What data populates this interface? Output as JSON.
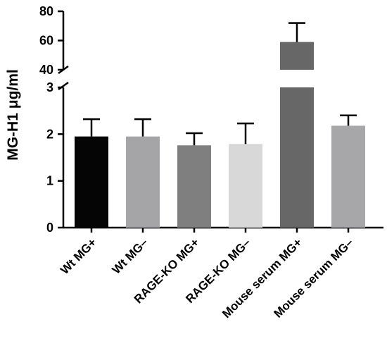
{
  "chart_data": {
    "type": "bar",
    "ylabel": "MG-H1 μg/ml",
    "categories": [
      "Wt MG+",
      "Wt MG–",
      "RAGE-KO MG+",
      "RAGE-KO MG–",
      "Mouse serum MG+",
      "Mouse serum MG–"
    ],
    "values": [
      1.95,
      1.95,
      1.76,
      1.79,
      59,
      2.18
    ],
    "error_upper": [
      0.37,
      0.37,
      0.26,
      0.44,
      13,
      0.22
    ],
    "colors": [
      "#050505",
      "#a5a5a8",
      "#7f7f7f",
      "#d8d8d8",
      "#676767",
      "#a7a7aa"
    ],
    "axis_break": {
      "lower_range": [
        0,
        3
      ],
      "upper_range": [
        40,
        80
      ]
    },
    "lower_ticks": [
      "0",
      "1",
      "2",
      "3"
    ],
    "upper_ticks": [
      "40",
      "60",
      "80"
    ],
    "grid": false,
    "legend": "none"
  }
}
